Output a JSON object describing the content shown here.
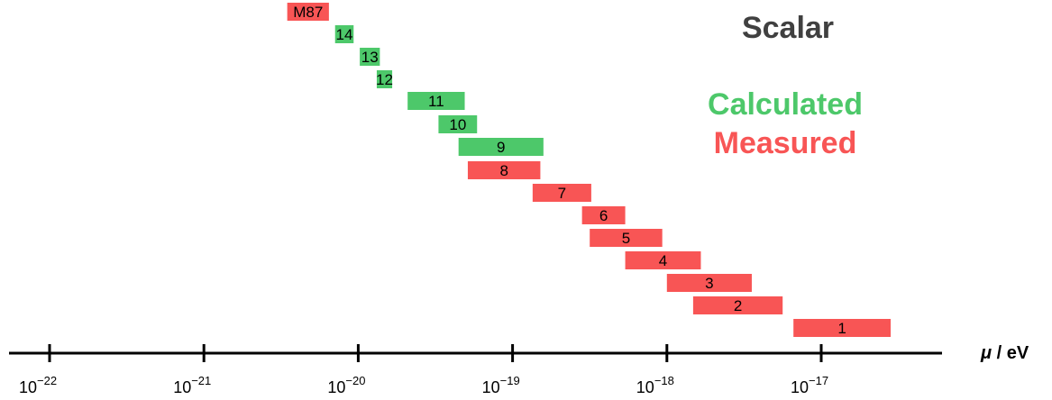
{
  "chart_data": {
    "type": "bar",
    "orientation": "horizontal-range",
    "x_scale": "log10",
    "xlim": [
      -22.25,
      -16.25
    ],
    "xlabel_symbol": "μ",
    "xlabel_unit": " / eV",
    "tick_base": "10",
    "ticks": [
      {
        "value": -22,
        "exponent": "−22"
      },
      {
        "value": -21,
        "exponent": "−21"
      },
      {
        "value": -20,
        "exponent": "−20"
      },
      {
        "value": -19,
        "exponent": "−19"
      },
      {
        "value": -18,
        "exponent": "−18"
      },
      {
        "value": -17,
        "exponent": "−17"
      }
    ],
    "series": [
      {
        "name": "Calculated",
        "color": "#4dc86a"
      },
      {
        "name": "Measured",
        "color": "#f85555"
      }
    ],
    "bars": [
      {
        "label": "M87",
        "series": "Measured",
        "log_min": -20.46,
        "log_max": -20.19
      },
      {
        "label": "14",
        "series": "Calculated",
        "log_min": -20.15,
        "log_max": -20.03
      },
      {
        "label": "13",
        "series": "Calculated",
        "log_min": -19.99,
        "log_max": -19.86
      },
      {
        "label": "12",
        "series": "Calculated",
        "log_min": -19.88,
        "log_max": -19.78
      },
      {
        "label": "11",
        "series": "Calculated",
        "log_min": -19.68,
        "log_max": -19.31
      },
      {
        "label": "10",
        "series": "Calculated",
        "log_min": -19.48,
        "log_max": -19.23
      },
      {
        "label": "9",
        "series": "Calculated",
        "log_min": -19.35,
        "log_max": -18.8
      },
      {
        "label": "8",
        "series": "Measured",
        "log_min": -19.29,
        "log_max": -18.82
      },
      {
        "label": "7",
        "series": "Measured",
        "log_min": -18.87,
        "log_max": -18.49
      },
      {
        "label": "6",
        "series": "Measured",
        "log_min": -18.55,
        "log_max": -18.27
      },
      {
        "label": "5",
        "series": "Measured",
        "log_min": -18.5,
        "log_max": -18.03
      },
      {
        "label": "4",
        "series": "Measured",
        "log_min": -18.27,
        "log_max": -17.78
      },
      {
        "label": "3",
        "series": "Measured",
        "log_min": -18.0,
        "log_max": -17.45
      },
      {
        "label": "2",
        "series": "Measured",
        "log_min": -17.83,
        "log_max": -17.25
      },
      {
        "label": "1",
        "series": "Measured",
        "log_min": -17.18,
        "log_max": -16.55
      }
    ],
    "legend": {
      "title": "Scalar",
      "title_color": "#404040",
      "entries": [
        "Calculated",
        "Measured"
      ],
      "placement": "top-right"
    }
  }
}
